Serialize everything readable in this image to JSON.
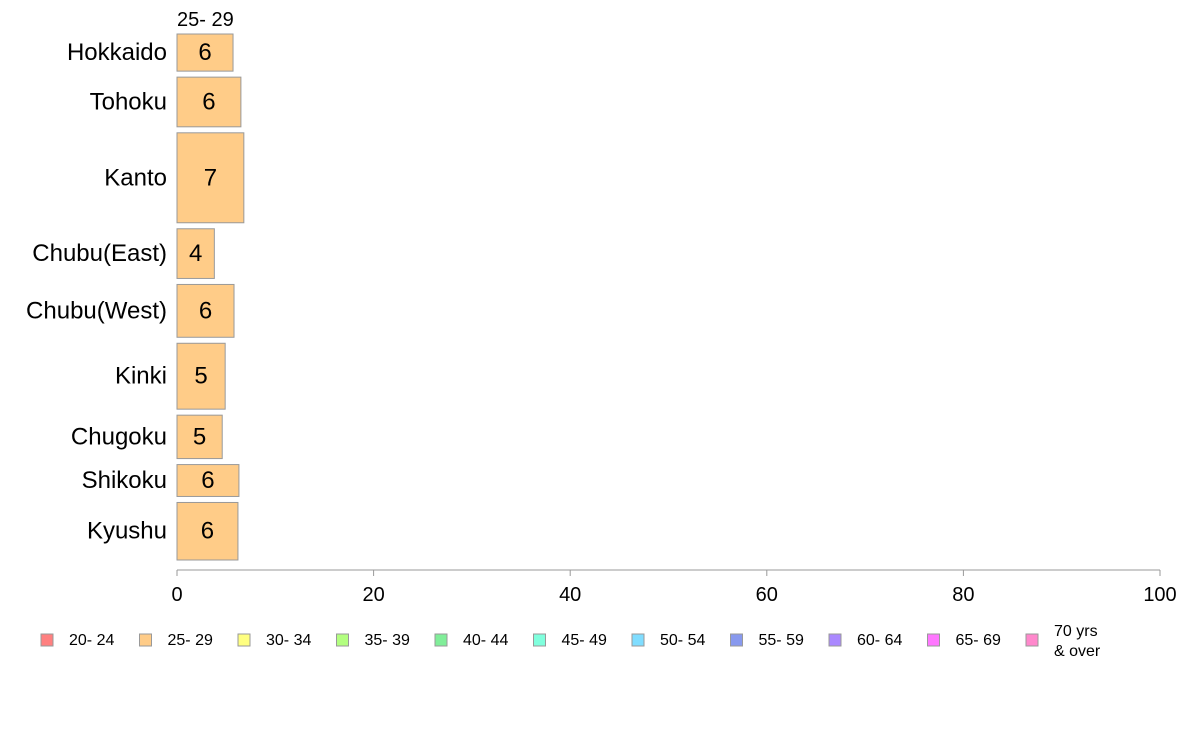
{
  "chart_data": {
    "type": "bar",
    "orientation": "horizontal",
    "stacked": true,
    "variable_width": true,
    "categories": [
      "Hokkaido",
      "Tohoku",
      "Kanto",
      "Chubu(East)",
      "Chubu(West)",
      "Kinki",
      "Chugoku",
      "Shikoku",
      "Kyushu"
    ],
    "category_weights": [
      0.71,
      0.95,
      1.72,
      0.95,
      1.01,
      1.26,
      0.83,
      0.61,
      1.1
    ],
    "series": [
      {
        "name": "25- 29",
        "color": "#ffcc88",
        "values": [
          5.7,
          6.5,
          6.8,
          3.8,
          5.8,
          4.9,
          4.6,
          6.3,
          6.2
        ],
        "labels": [
          "6",
          "6",
          "7",
          "4",
          "6",
          "5",
          "5",
          "6",
          "6"
        ]
      }
    ],
    "visible_series_header": "25- 29",
    "xlim": [
      0,
      100
    ],
    "xticks": [
      "0",
      "20",
      "40",
      "60",
      "80",
      "100"
    ],
    "grid": false,
    "legend": {
      "position": "bottom",
      "entries": [
        {
          "label": "20- 24",
          "color": "#ff8080"
        },
        {
          "label": "25- 29",
          "color": "#ffcc88"
        },
        {
          "label": "30- 34",
          "color": "#ffff80"
        },
        {
          "label": "35- 39",
          "color": "#b3ff80"
        },
        {
          "label": "40- 44",
          "color": "#80ee99"
        },
        {
          "label": "45- 49",
          "color": "#80ffdd"
        },
        {
          "label": "50- 54",
          "color": "#80ddff"
        },
        {
          "label": "55- 59",
          "color": "#8899ee"
        },
        {
          "label": "60- 64",
          "color": "#aa88ff"
        },
        {
          "label": "65- 69",
          "color": "#ff77ff"
        },
        {
          "label": "70 yrs\n& over",
          "color": "#ff88cc"
        }
      ]
    },
    "colors": {
      "bar_stroke": "#999999",
      "axis": "#999999"
    }
  }
}
